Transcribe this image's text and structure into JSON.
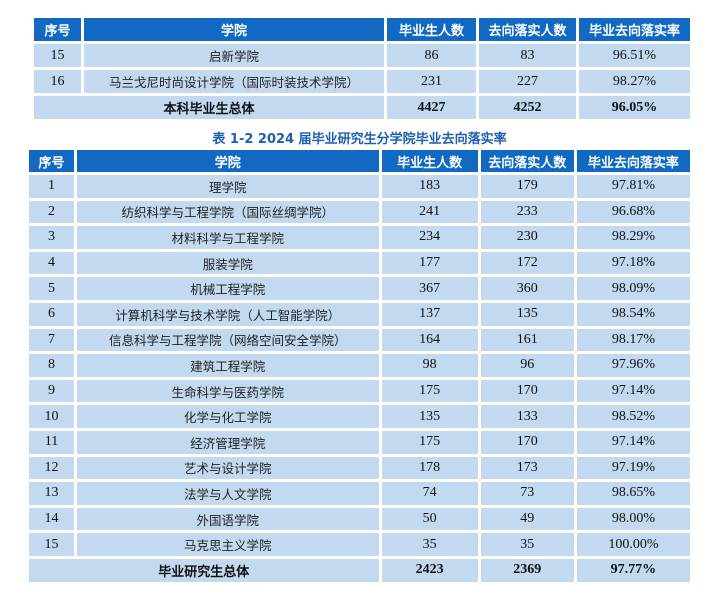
{
  "columns": [
    "序号",
    "学院",
    "毕业生人数",
    "去向落实人数",
    "毕业去向落实率"
  ],
  "table1": {
    "rows": [
      {
        "no": "15",
        "college": "启新学院",
        "graduates": "86",
        "placed": "83",
        "rate": "96.51%"
      },
      {
        "no": "16",
        "college": "马兰戈尼时尚设计学院（国际时装技术学院）",
        "graduates": "231",
        "placed": "227",
        "rate": "98.27%"
      }
    ],
    "total": {
      "label": "本科毕业生总体",
      "graduates": "4427",
      "placed": "4252",
      "rate": "96.05%"
    }
  },
  "caption": "表 1-2  2024 届毕业研究生分学院毕业去向落实率",
  "table2": {
    "rows": [
      {
        "no": "1",
        "college": "理学院",
        "graduates": "183",
        "placed": "179",
        "rate": "97.81%"
      },
      {
        "no": "2",
        "college": "纺织科学与工程学院（国际丝绸学院）",
        "graduates": "241",
        "placed": "233",
        "rate": "96.68%"
      },
      {
        "no": "3",
        "college": "材料科学与工程学院",
        "graduates": "234",
        "placed": "230",
        "rate": "98.29%"
      },
      {
        "no": "4",
        "college": "服装学院",
        "graduates": "177",
        "placed": "172",
        "rate": "97.18%"
      },
      {
        "no": "5",
        "college": "机械工程学院",
        "graduates": "367",
        "placed": "360",
        "rate": "98.09%"
      },
      {
        "no": "6",
        "college": "计算机科学与技术学院（人工智能学院）",
        "graduates": "137",
        "placed": "135",
        "rate": "98.54%"
      },
      {
        "no": "7",
        "college": "信息科学与工程学院（网络空间安全学院）",
        "graduates": "164",
        "placed": "161",
        "rate": "98.17%"
      },
      {
        "no": "8",
        "college": "建筑工程学院",
        "graduates": "98",
        "placed": "96",
        "rate": "97.96%"
      },
      {
        "no": "9",
        "college": "生命科学与医药学院",
        "graduates": "175",
        "placed": "170",
        "rate": "97.14%"
      },
      {
        "no": "10",
        "college": "化学与化工学院",
        "graduates": "135",
        "placed": "133",
        "rate": "98.52%"
      },
      {
        "no": "11",
        "college": "经济管理学院",
        "graduates": "175",
        "placed": "170",
        "rate": "97.14%"
      },
      {
        "no": "12",
        "college": "艺术与设计学院",
        "graduates": "178",
        "placed": "173",
        "rate": "97.19%"
      },
      {
        "no": "13",
        "college": "法学与人文学院",
        "graduates": "74",
        "placed": "73",
        "rate": "98.65%"
      },
      {
        "no": "14",
        "college": "外国语学院",
        "graduates": "50",
        "placed": "49",
        "rate": "98.00%"
      },
      {
        "no": "15",
        "college": "马克思主义学院",
        "graduates": "35",
        "placed": "35",
        "rate": "100.00%"
      }
    ],
    "total": {
      "label": "毕业研究生总体",
      "graduates": "2423",
      "placed": "2369",
      "rate": "97.77%"
    }
  },
  "colors": {
    "header_bg": "#1169c4",
    "header_text": "#ffffff",
    "cell_bg": "#c3d9f0",
    "caption_text": "#1d5fae"
  }
}
